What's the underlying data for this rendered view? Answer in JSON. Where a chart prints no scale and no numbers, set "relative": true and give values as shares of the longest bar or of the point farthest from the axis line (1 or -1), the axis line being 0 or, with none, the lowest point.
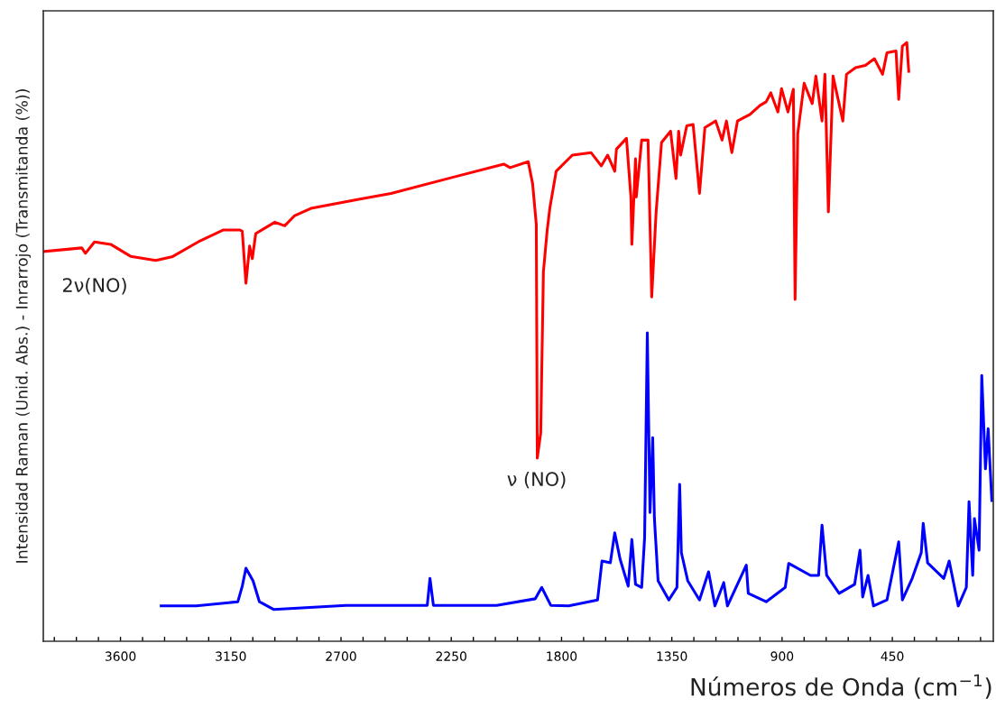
{
  "chart_data": {
    "type": "line",
    "relative": true,
    "xlabel": "Números de Onda (cm$^{−1}$)",
    "ylabel": "Intensidad Raman (Unid. Abs.) - Inrarrojo (Transmitanda (%))",
    "xlim": [
      3915,
      38
    ],
    "xticks": [
      {
        "value": 3870,
        "label": null
      },
      {
        "value": 3780,
        "label": null
      },
      {
        "value": 3690,
        "label": null
      },
      3600,
      {
        "value": 3510,
        "label": null
      },
      {
        "value": 3420,
        "label": null
      },
      {
        "value": 3330,
        "label": null
      },
      {
        "value": 3240,
        "label": null
      },
      3150,
      {
        "value": 3060,
        "label": null
      },
      {
        "value": 2970,
        "label": null
      },
      {
        "value": 2880,
        "label": null
      },
      {
        "value": 2790,
        "label": null
      },
      2700,
      {
        "value": 2610,
        "label": null
      },
      {
        "value": 2520,
        "label": null
      },
      {
        "value": 2430,
        "label": null
      },
      {
        "value": 2340,
        "label": null
      },
      2250,
      {
        "value": 2160,
        "label": null
      },
      {
        "value": 2070,
        "label": null
      },
      {
        "value": 1980,
        "label": null
      },
      {
        "value": 1890,
        "label": null
      },
      1800,
      {
        "value": 1710,
        "label": null
      },
      {
        "value": 1620,
        "label": null
      },
      {
        "value": 1530,
        "label": null
      },
      {
        "value": 1440,
        "label": null
      },
      1350,
      {
        "value": 1260,
        "label": null
      },
      {
        "value": 1170,
        "label": null
      },
      {
        "value": 1080,
        "label": null
      },
      {
        "value": 990,
        "label": null
      },
      900,
      {
        "value": 810,
        "label": null
      },
      {
        "value": 720,
        "label": null
      },
      {
        "value": 630,
        "label": null
      },
      {
        "value": 540,
        "label": null
      },
      450,
      {
        "value": 360,
        "label": null
      },
      {
        "value": 270,
        "label": null
      },
      {
        "value": 180,
        "label": null
      },
      {
        "value": 90,
        "label": null
      }
    ],
    "tick_labels": "x",
    "marker": "none",
    "line_style": "solid",
    "annotations": [
      "2ν(NO)",
      "ν (NO)"
    ],
    "series": [
      {
        "color": "#ff0000",
        "x": [
          3912,
          3758,
          3743,
          3706,
          3640,
          3559,
          3456,
          3390,
          3283,
          3180,
          3114,
          3103,
          3088,
          3073,
          3062,
          3048,
          2970,
          2930,
          2889,
          2823,
          2628,
          2496,
          2234,
          2036,
          2010,
          1936,
          1918,
          1903,
          1899,
          1885,
          1874,
          1859,
          1848,
          1822,
          1756,
          1679,
          1638,
          1612,
          1583,
          1576,
          1535,
          1517,
          1513,
          1498,
          1495,
          1473,
          1447,
          1432,
          1414,
          1392,
          1355,
          1333,
          1322,
          1314,
          1289,
          1263,
          1237,
          1215,
          1171,
          1145,
          1127,
          1105,
          1082,
          1031,
          990,
          965,
          946,
          917,
          902,
          876,
          854,
          847,
          836,
          810,
          777,
          762,
          737,
          725,
          711,
          692,
          652,
          637,
          600,
          560,
          523,
          490,
          472,
          435,
          424,
          409,
          391,
          383
        ],
        "values": [
          0.651,
          0.657,
          0.648,
          0.667,
          0.663,
          0.643,
          0.636,
          0.642,
          0.667,
          0.687,
          0.687,
          0.685,
          0.598,
          0.66,
          0.639,
          0.681,
          0.7,
          0.694,
          0.711,
          0.723,
          0.738,
          0.748,
          0.776,
          0.797,
          0.791,
          0.801,
          0.764,
          0.696,
          0.306,
          0.348,
          0.617,
          0.685,
          0.723,
          0.785,
          0.812,
          0.816,
          0.794,
          0.812,
          0.785,
          0.822,
          0.84,
          0.742,
          0.663,
          0.806,
          0.742,
          0.837,
          0.837,
          0.575,
          0.717,
          0.833,
          0.852,
          0.773,
          0.852,
          0.812,
          0.861,
          0.863,
          0.748,
          0.858,
          0.869,
          0.837,
          0.869,
          0.816,
          0.869,
          0.88,
          0.895,
          0.901,
          0.916,
          0.884,
          0.923,
          0.884,
          0.922,
          0.571,
          0.848,
          0.932,
          0.898,
          0.944,
          0.869,
          0.947,
          0.717,
          0.944,
          0.869,
          0.947,
          0.958,
          0.962,
          0.973,
          0.947,
          0.983,
          0.986,
          0.905,
          0.994,
          1.0,
          0.952
        ]
      },
      {
        "color": "#0000ff",
        "x": [
          3434,
          3291,
          3121,
          3103,
          3088,
          3059,
          3033,
          2974,
          2680,
          2348,
          2337,
          2323,
          2065,
          1907,
          1881,
          1844,
          1771,
          1653,
          1635,
          1601,
          1583,
          1561,
          1528,
          1513,
          1498,
          1473,
          1461,
          1450,
          1439,
          1428,
          1421,
          1406,
          1362,
          1329,
          1318,
          1311,
          1285,
          1237,
          1200,
          1174,
          1138,
          1123,
          1046,
          1038,
          965,
          887,
          873,
          784,
          751,
          737,
          718,
          667,
          604,
          582,
          571,
          549,
          527,
          472,
          424,
          409,
          369,
          332,
          324,
          306,
          240,
          218,
          181,
          148,
          137,
          122,
          115,
          96,
          85,
          70,
          59,
          44
        ],
        "values": [
          0.059,
          0.059,
          0.066,
          0.092,
          0.122,
          0.101,
          0.066,
          0.053,
          0.06,
          0.06,
          0.105,
          0.06,
          0.06,
          0.071,
          0.09,
          0.06,
          0.059,
          0.069,
          0.134,
          0.131,
          0.181,
          0.137,
          0.092,
          0.17,
          0.095,
          0.09,
          0.173,
          0.515,
          0.215,
          0.34,
          0.205,
          0.101,
          0.069,
          0.09,
          0.262,
          0.148,
          0.101,
          0.069,
          0.116,
          0.059,
          0.098,
          0.059,
          0.127,
          0.08,
          0.066,
          0.09,
          0.13,
          0.11,
          0.11,
          0.194,
          0.11,
          0.08,
          0.095,
          0.152,
          0.074,
          0.11,
          0.059,
          0.069,
          0.166,
          0.069,
          0.105,
          0.148,
          0.197,
          0.131,
          0.105,
          0.134,
          0.059,
          0.09,
          0.233,
          0.11,
          0.205,
          0.152,
          0.444,
          0.288,
          0.355,
          0.235
        ]
      }
    ]
  }
}
